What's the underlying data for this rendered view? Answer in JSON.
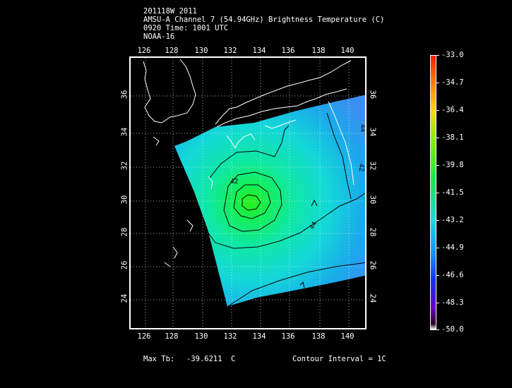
{
  "header": {
    "line1": "201118W 2011",
    "line2": "AMSU-A Channel 7 (54.94GHz) Brightness Temperature (C)",
    "line3": "0920 Time: 1001 UTC",
    "line4": "NOAA-16"
  },
  "map": {
    "lon_ticks": [
      "126",
      "128",
      "130",
      "132",
      "134",
      "136",
      "138",
      "140"
    ],
    "lat_ticks": [
      "36",
      "34",
      "32",
      "30",
      "28",
      "26",
      "24"
    ],
    "contour_label_1": "42",
    "contour_label_2": "44",
    "contour_label_3": "44",
    "contour_label_4": "42"
  },
  "colorbar": {
    "labels": [
      "-33.0",
      "-34.7",
      "-36.4",
      "-38.1",
      "-39.8",
      "-41.5",
      "-43.2",
      "-44.9",
      "-46.6",
      "-48.3",
      "-50.0"
    ]
  },
  "footer": {
    "max_label": "Max Tb:",
    "max_value": "-39.6211",
    "max_unit": "C",
    "contour_interval": "Contour Interval = 1C"
  }
}
